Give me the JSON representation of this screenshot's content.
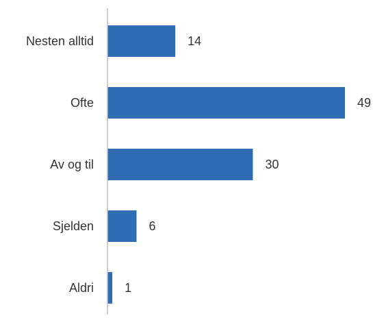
{
  "chart_data": {
    "type": "bar",
    "orientation": "horizontal",
    "categories": [
      "Nesten alltid",
      "Ofte",
      "Av og til",
      "Sjelden",
      "Aldri"
    ],
    "values": [
      14,
      49,
      30,
      6,
      1
    ],
    "title": "",
    "xlabel": "",
    "ylabel": "",
    "xlim": [
      0,
      49
    ],
    "grid": false,
    "legend": "none",
    "data_labels": [
      "14",
      "49",
      "30",
      "6",
      "1"
    ],
    "colors": {
      "bar": "#2e6db4",
      "axis": "#bfbfbf",
      "text": "#333333"
    }
  }
}
